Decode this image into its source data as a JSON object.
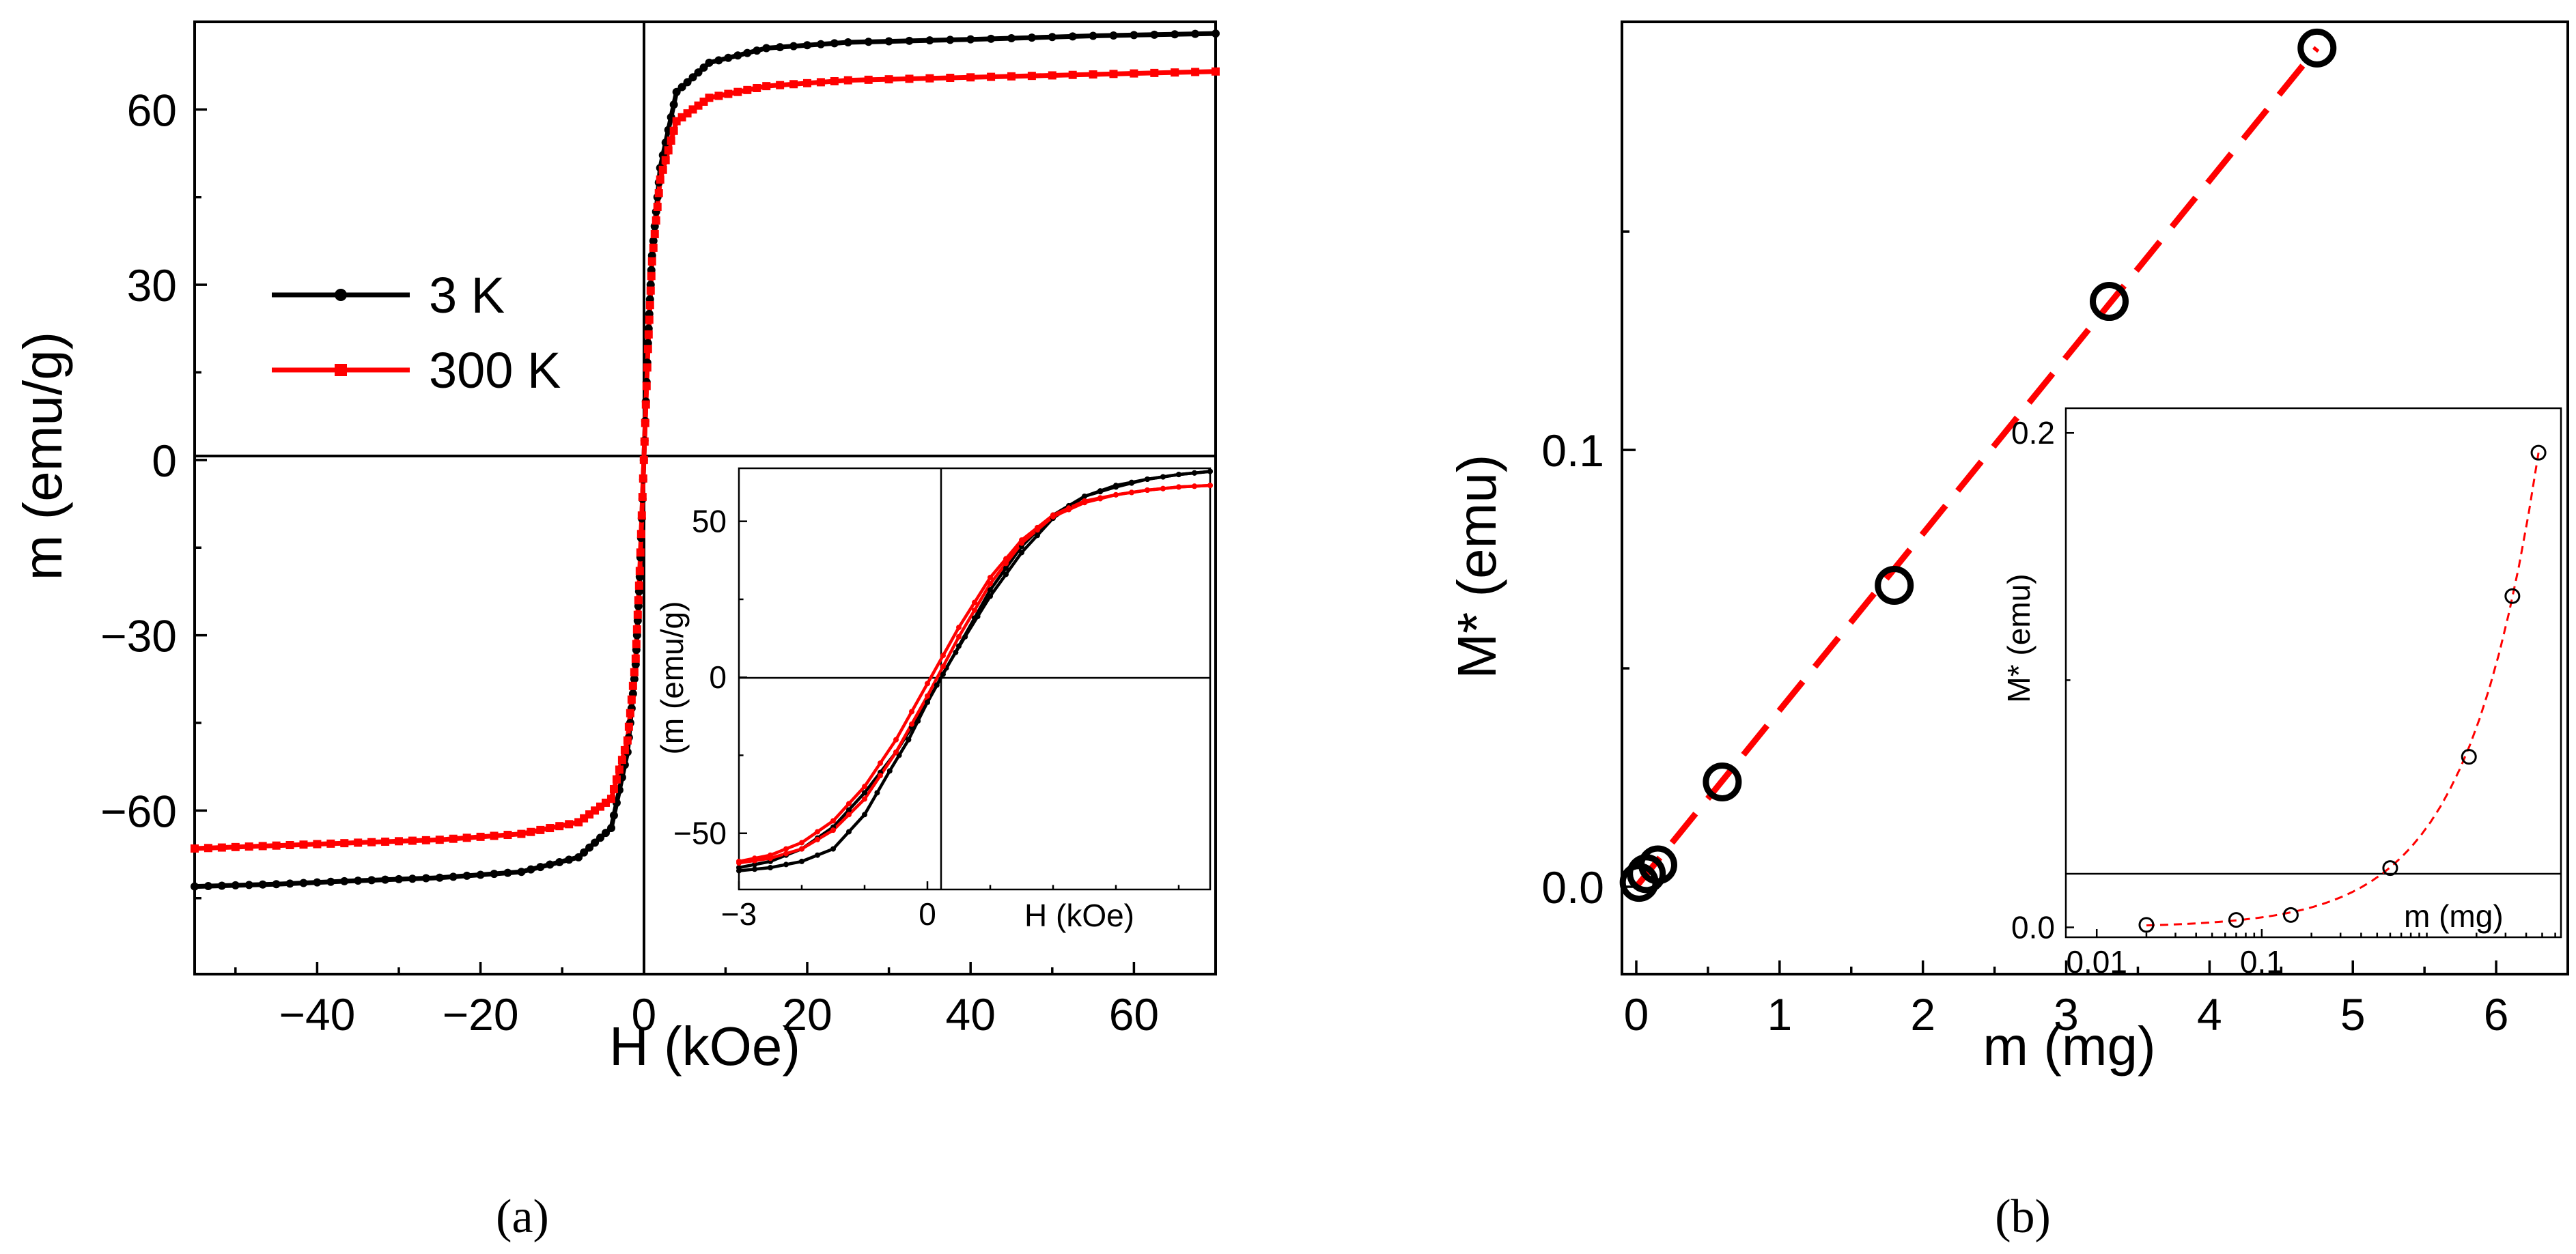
{
  "colors": {
    "series_3K": "#000000",
    "series_300K": "#ff0000",
    "fit": "#ff0000",
    "axis": "#000000"
  },
  "panel_a": {
    "caption": "(a)",
    "legend": [
      {
        "label": "3 K"
      },
      {
        "label": "300 K"
      }
    ]
  },
  "panel_b": {
    "caption": "(b)"
  },
  "chart_data": [
    {
      "id": "a-main",
      "type": "line",
      "xlabel": "H (kOe)",
      "ylabel": "m (emu/g)",
      "xlim": [
        -55,
        70
      ],
      "ylim": [
        -88,
        75
      ],
      "xticks": [
        {
          "value": -40,
          "label": "−40"
        },
        {
          "value": -20,
          "label": "−20"
        },
        {
          "value": 0,
          "label": "0"
        },
        {
          "value": 20,
          "label": "20"
        },
        {
          "value": 40,
          "label": "40"
        },
        {
          "value": 60,
          "label": "60"
        }
      ],
      "yticks": [
        {
          "value": -60,
          "label": "−60"
        },
        {
          "value": -30,
          "label": "−30"
        },
        {
          "value": 0,
          "label": "0"
        },
        {
          "value": 30,
          "label": "30"
        },
        {
          "value": 60,
          "label": "60"
        }
      ],
      "series": [
        {
          "name": "3 K",
          "x": [
            -55,
            -45,
            -35,
            -25,
            -15,
            -8,
            -4,
            -2,
            -1,
            -0.5,
            0,
            0.5,
            1,
            2,
            4,
            8,
            15,
            25,
            40,
            55,
            70
          ],
          "y": [
            -73,
            -72.6,
            -72,
            -71.5,
            -70.5,
            -68,
            -63,
            -50,
            -35,
            -20,
            0,
            20,
            35,
            50,
            63,
            68,
            70.5,
            71.5,
            72,
            72.6,
            73
          ]
        },
        {
          "name": "300 K",
          "x": [
            -55,
            -45,
            -35,
            -25,
            -15,
            -8,
            -4,
            -2,
            -1,
            -0.5,
            0,
            0.5,
            1,
            2,
            4,
            8,
            15,
            25,
            40,
            55,
            70
          ],
          "y": [
            -66.5,
            -66,
            -65.5,
            -65,
            -64,
            -62,
            -58,
            -48,
            -34,
            -19,
            0,
            19,
            34,
            48,
            58,
            62,
            64,
            65,
            65.5,
            66,
            66.5
          ]
        }
      ]
    },
    {
      "id": "a-inset",
      "type": "line",
      "xlabel": "H (kOe)",
      "ylabel": "(m (emu/g)",
      "xlim": [
        -3,
        4.5
      ],
      "ylim": [
        -68,
        67
      ],
      "xticks": [
        {
          "value": -3,
          "label": "−3"
        },
        {
          "value": 0,
          "label": "0"
        }
      ],
      "yticks": [
        {
          "value": -50,
          "label": "−50"
        },
        {
          "value": 0,
          "label": "0"
        },
        {
          "value": 50,
          "label": "50"
        }
      ],
      "series": [
        {
          "name": "3 K increasing field",
          "x": [
            -3,
            -2.5,
            -2,
            -1.5,
            -1,
            -0.5,
            0,
            0.3,
            0.6,
            1,
            1.5,
            2,
            2.5,
            3,
            3.5,
            4,
            4.5
          ],
          "y": [
            -61,
            -59,
            -55,
            -48,
            -37,
            -24,
            -8,
            3,
            13,
            26,
            40,
            51,
            58,
            61.5,
            63.5,
            65,
            66
          ]
        },
        {
          "name": "3 K decreasing field",
          "x": [
            -3,
            -2.5,
            -2,
            -1.5,
            -1,
            -0.6,
            -0.3,
            0,
            0.5,
            1,
            1.5,
            2,
            2.5,
            3,
            3.5,
            4,
            4.5
          ],
          "y": [
            -62,
            -61,
            -59,
            -55,
            -44,
            -30,
            -20,
            -8,
            10,
            28,
            42,
            52,
            58,
            61,
            63.5,
            65,
            66
          ]
        },
        {
          "name": "300 K increasing field",
          "x": [
            -3,
            -2.5,
            -2,
            -1.5,
            -1,
            -0.5,
            0,
            0.5,
            1,
            1.5,
            2,
            2.5,
            3,
            3.5,
            4,
            4.5
          ],
          "y": [
            -59,
            -57,
            -53,
            -46,
            -35,
            -20,
            -2,
            16,
            32,
            44,
            52,
            56.5,
            58.5,
            60,
            61,
            61.5
          ]
        },
        {
          "name": "300 K decreasing field",
          "x": [
            -3,
            -2.5,
            -2,
            -1.5,
            -1,
            -0.5,
            0,
            0.5,
            1,
            1.5,
            2,
            2.5,
            3,
            3.5,
            4,
            4.5
          ],
          "y": [
            -59.5,
            -58,
            -55,
            -49,
            -39,
            -24,
            -6,
            13,
            30,
            43,
            51.5,
            56,
            58.5,
            60,
            61,
            61.5
          ]
        }
      ]
    },
    {
      "id": "b-main",
      "type": "scatter",
      "xlabel": "m (mg)",
      "ylabel": "M* (emu)",
      "xlim": [
        -0.1,
        6.5
      ],
      "ylim": [
        -0.02,
        0.198
      ],
      "xticks": [
        {
          "value": 0,
          "label": "0"
        },
        {
          "value": 1,
          "label": "1"
        },
        {
          "value": 2,
          "label": "2"
        },
        {
          "value": 3,
          "label": "3"
        },
        {
          "value": 4,
          "label": "4"
        },
        {
          "value": 5,
          "label": "5"
        },
        {
          "value": 6,
          "label": "6"
        }
      ],
      "yticks": [
        {
          "value": 0,
          "label": "0.0"
        },
        {
          "value": 0.1,
          "label": "0.1"
        }
      ],
      "points": {
        "x": [
          0.02,
          0.07,
          0.15,
          0.6,
          1.8,
          3.3,
          4.75
        ],
        "y": [
          0.001,
          0.003,
          0.005,
          0.024,
          0.069,
          0.134,
          0.192
        ]
      },
      "fit": {
        "x": [
          0,
          4.75
        ],
        "y": [
          0,
          0.192
        ]
      }
    },
    {
      "id": "b-inset",
      "type": "scatter",
      "xscale": "log",
      "xlabel": "m (mg)",
      "ylabel": "M* (emu)",
      "xlim": [
        0.0065,
        6.5
      ],
      "ylim": [
        -0.004,
        0.21
      ],
      "xticks": [
        {
          "value": 0.01,
          "label": "0.01"
        },
        {
          "value": 0.1,
          "label": "0.1"
        }
      ],
      "yticks": [
        {
          "value": 0,
          "label": "0.0"
        },
        {
          "value": 0.2,
          "label": "0.2"
        }
      ],
      "points": {
        "x": [
          0.02,
          0.07,
          0.15,
          0.6,
          1.8,
          3.3,
          4.75
        ],
        "y": [
          0.001,
          0.003,
          0.005,
          0.024,
          0.069,
          0.134,
          0.192
        ]
      },
      "fit": {
        "x": [
          0.02,
          4.75
        ],
        "y": [
          0,
          0.192
        ]
      }
    }
  ]
}
